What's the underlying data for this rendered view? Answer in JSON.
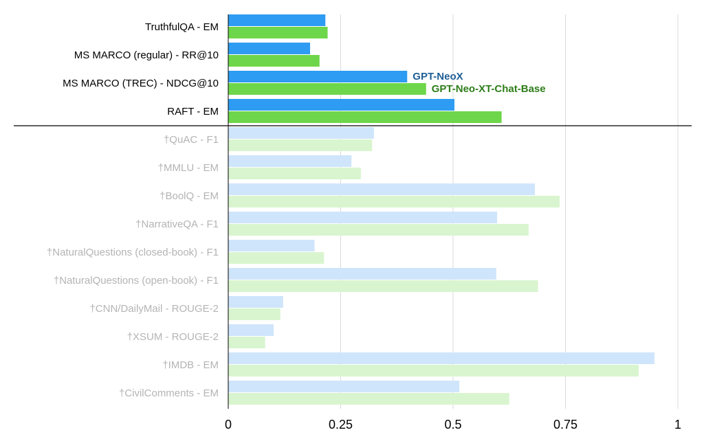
{
  "chart_data": {
    "type": "bar",
    "orientation": "horizontal",
    "title": "",
    "xlabel": "",
    "ylabel": "",
    "xlim": [
      0,
      1
    ],
    "xticks": [
      0,
      0.25,
      0.5,
      0.75,
      1
    ],
    "xtick_labels": [
      "0",
      "0.25",
      "0.5",
      "0.75",
      "1"
    ],
    "grid": "vertical",
    "highlighted_count": 4,
    "categories": [
      "TruthfulQA - EM",
      "MS MARCO (regular) - RR@10",
      "MS MARCO (TREC) - NDCG@10",
      "RAFT - EM",
      "†QuAC - F1",
      "†MMLU - EM",
      "†BoolQ - EM",
      "†NarrativeQA - F1",
      "†NaturalQuestions (closed-book) - F1",
      "†NaturalQuestions (open-book) - F1",
      "†CNN/DailyMail - ROUGE-2",
      "†XSUM - ROUGE-2",
      "†IMDB - EM",
      "†CivilComments - EM"
    ],
    "series": [
      {
        "name": "GPT-NeoX",
        "color": "#2e9cf2",
        "faded_color": "#cfe5fb",
        "label_color": "#1f5e96",
        "values": [
          0.216,
          0.182,
          0.398,
          0.503,
          0.324,
          0.274,
          0.682,
          0.598,
          0.192,
          0.596,
          0.122,
          0.101,
          0.948,
          0.514
        ]
      },
      {
        "name": "GPT-Neo-XT-Chat-Base",
        "color": "#6ed64a",
        "faded_color": "#d9f5cf",
        "label_color": "#2e7d1a",
        "values": [
          0.221,
          0.203,
          0.44,
          0.608,
          0.32,
          0.295,
          0.737,
          0.668,
          0.213,
          0.689,
          0.116,
          0.082,
          0.913,
          0.625
        ]
      }
    ],
    "legend_placement": "inline next to MS MARCO (TREC) - NDCG@10 bars",
    "colors": {
      "label_dark": "#000000",
      "label_faded": "#b4b4b4",
      "grid": "#d9d9d9",
      "separator": "#000000"
    }
  }
}
